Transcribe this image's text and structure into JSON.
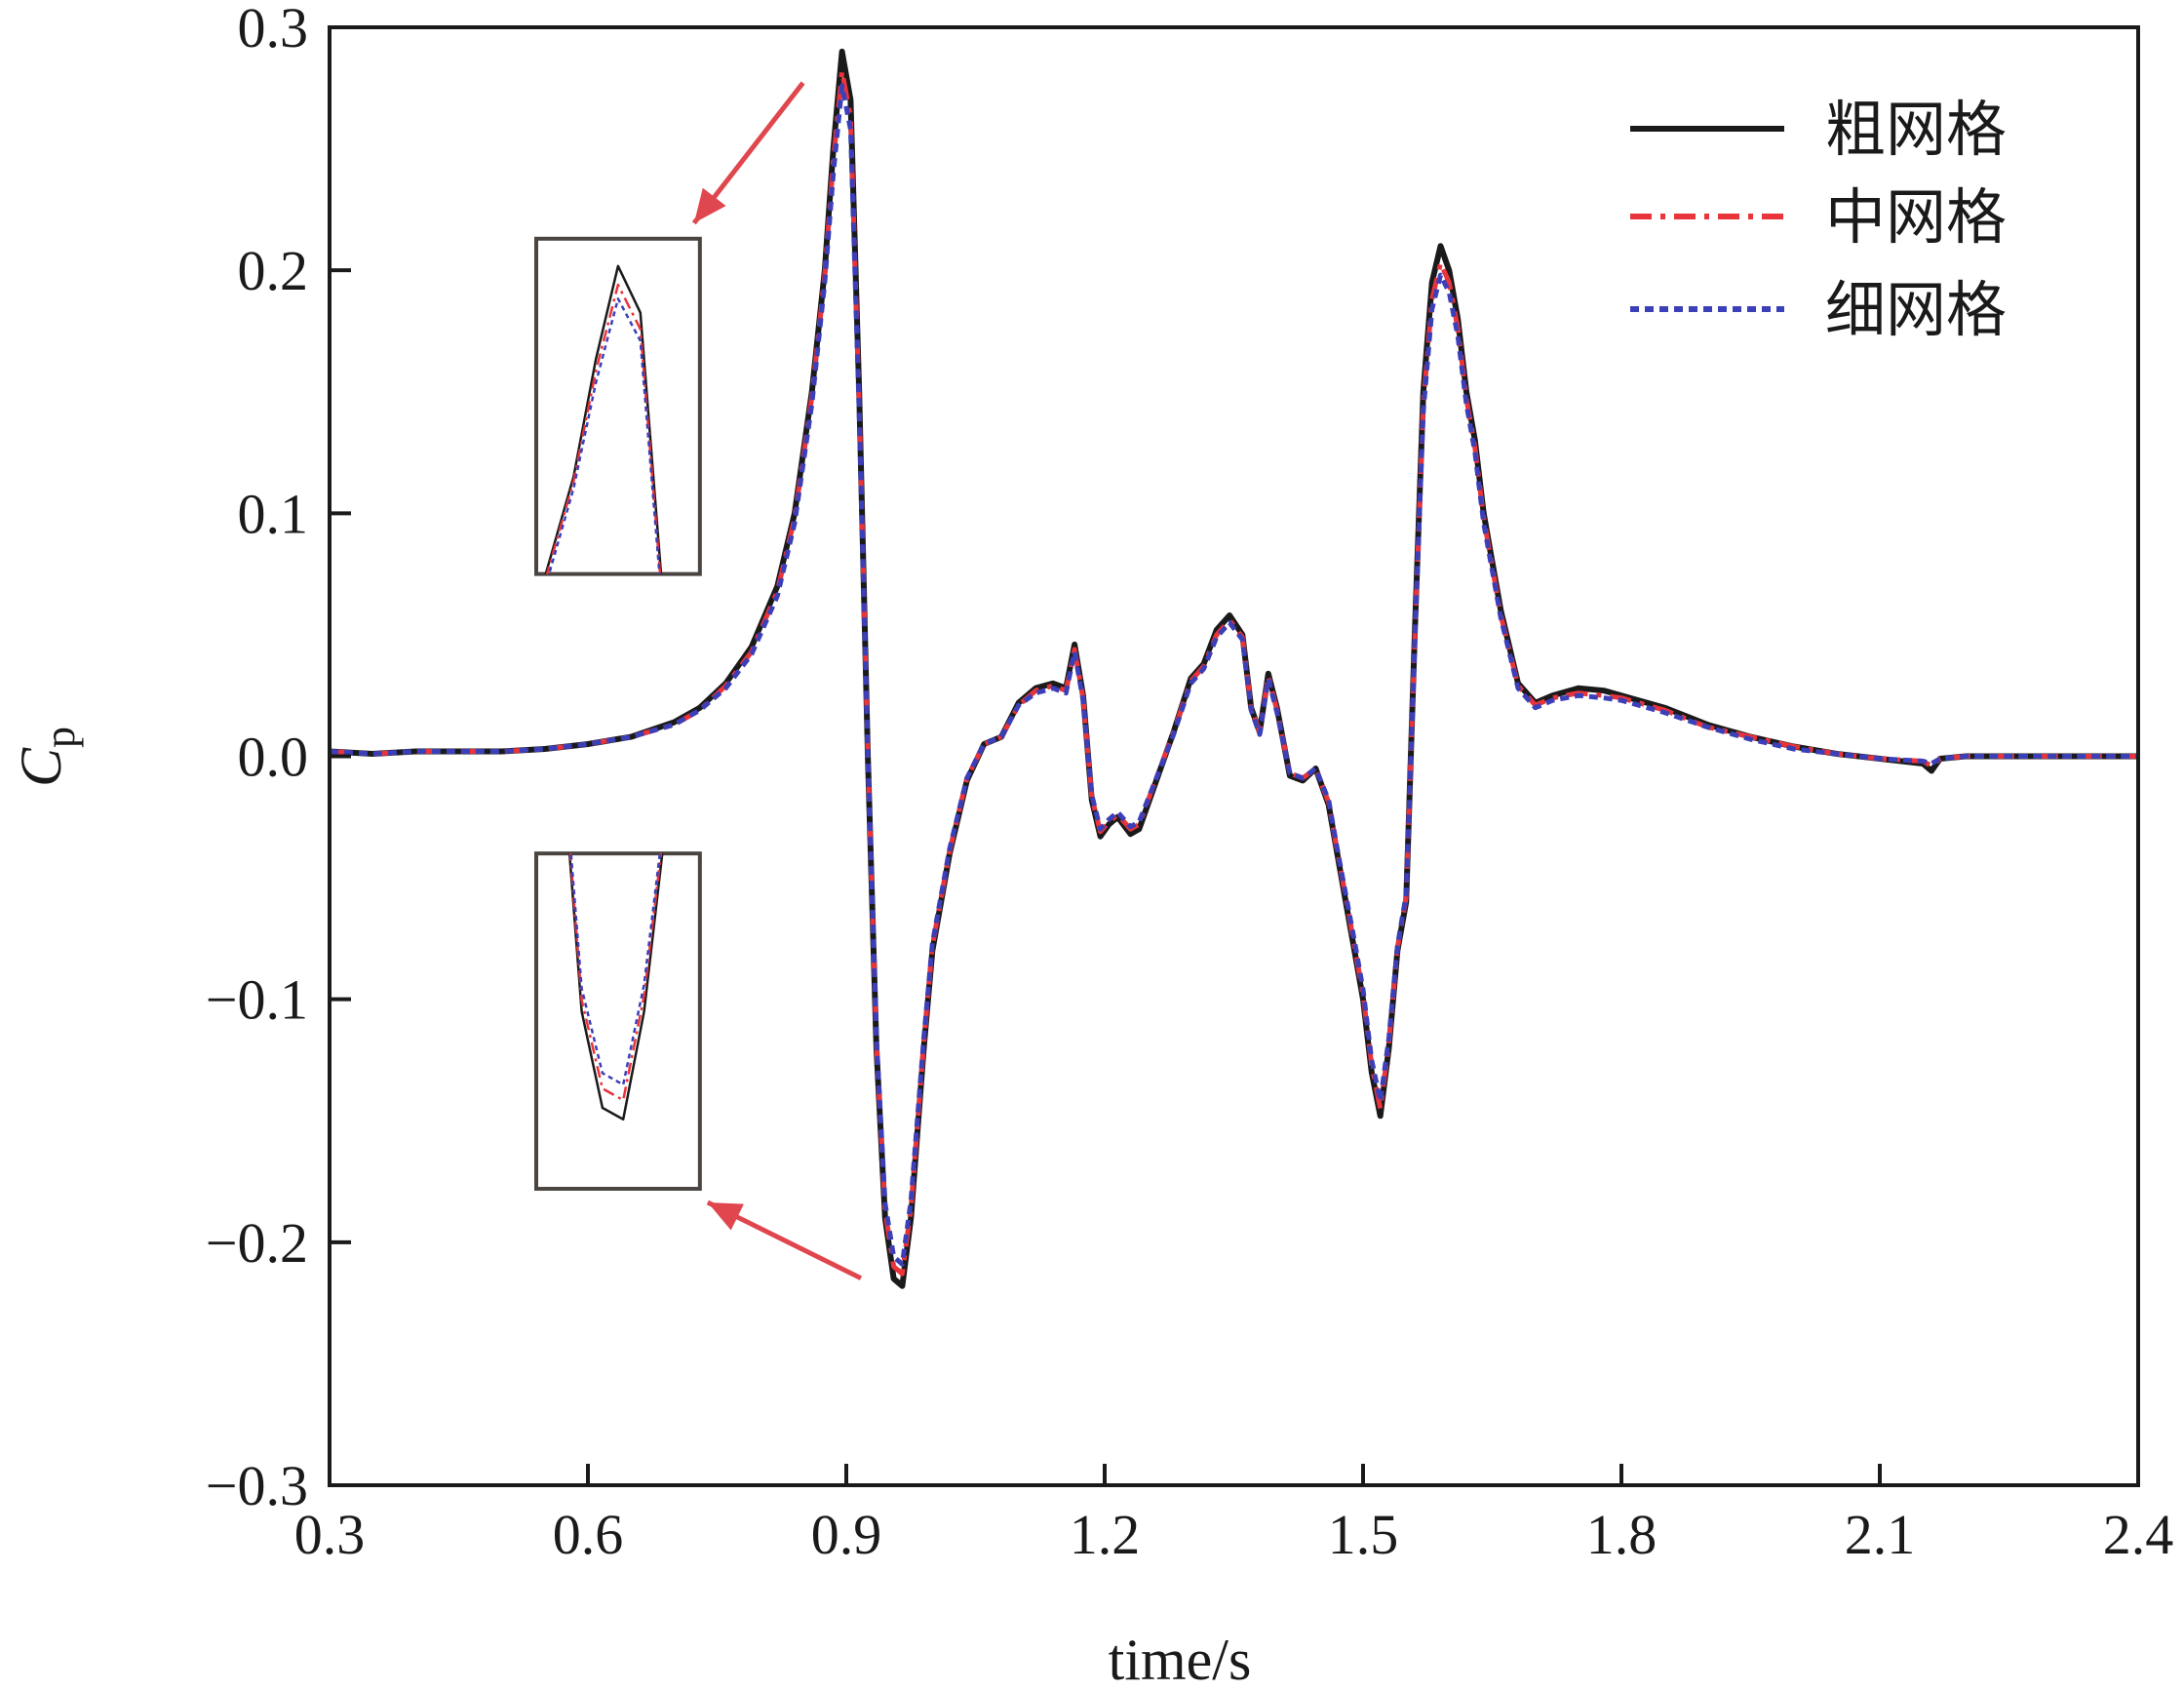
{
  "chart_data": {
    "type": "line",
    "title": "",
    "xlabel": "time/s",
    "ylabel": "C",
    "ylabel_sub": "p",
    "xlim": [
      0.3,
      2.4
    ],
    "ylim": [
      -0.3,
      0.3
    ],
    "xticks": [
      0.3,
      0.6,
      0.9,
      1.2,
      1.5,
      1.8,
      2.1,
      2.4
    ],
    "yticks": [
      -0.3,
      -0.2,
      -0.1,
      0.0,
      0.1,
      0.2,
      0.3
    ],
    "xtick_labels": [
      "0.3",
      "0.6",
      "0.9",
      "1.2",
      "1.5",
      "1.8",
      "2.1",
      "2.4"
    ],
    "ytick_labels": [
      "−0.3",
      "−0.2",
      "−0.1",
      "0.0",
      "0.1",
      "0.2",
      "0.3"
    ],
    "grid": false,
    "legend_position": "top-right",
    "x": [
      0.3,
      0.35,
      0.4,
      0.45,
      0.5,
      0.55,
      0.6,
      0.65,
      0.7,
      0.73,
      0.76,
      0.79,
      0.82,
      0.84,
      0.86,
      0.875,
      0.885,
      0.895,
      0.905,
      0.915,
      0.925,
      0.935,
      0.945,
      0.955,
      0.965,
      0.975,
      0.99,
      1.0,
      1.02,
      1.04,
      1.06,
      1.08,
      1.1,
      1.12,
      1.14,
      1.155,
      1.165,
      1.175,
      1.185,
      1.195,
      1.205,
      1.215,
      1.23,
      1.24,
      1.26,
      1.28,
      1.3,
      1.315,
      1.33,
      1.345,
      1.36,
      1.37,
      1.38,
      1.39,
      1.4,
      1.415,
      1.43,
      1.445,
      1.46,
      1.47,
      1.48,
      1.49,
      1.5,
      1.51,
      1.52,
      1.53,
      1.54,
      1.55,
      1.56,
      1.57,
      1.58,
      1.59,
      1.6,
      1.61,
      1.62,
      1.63,
      1.64,
      1.66,
      1.68,
      1.7,
      1.72,
      1.75,
      1.78,
      1.8,
      1.85,
      1.9,
      1.95,
      2.0,
      2.05,
      2.1,
      2.15,
      2.16,
      2.17,
      2.2,
      2.3,
      2.4
    ],
    "series": [
      {
        "name": "粗网格",
        "color": "#1a1a1a",
        "style": "solid",
        "values": [
          0.002,
          0.001,
          0.002,
          0.002,
          0.002,
          0.003,
          0.005,
          0.008,
          0.014,
          0.02,
          0.03,
          0.045,
          0.07,
          0.1,
          0.15,
          0.2,
          0.25,
          0.29,
          0.27,
          0.15,
          0.0,
          -0.12,
          -0.19,
          -0.215,
          -0.218,
          -0.19,
          -0.12,
          -0.08,
          -0.04,
          -0.01,
          0.005,
          0.008,
          0.022,
          0.028,
          0.03,
          0.028,
          0.046,
          0.025,
          -0.018,
          -0.033,
          -0.028,
          -0.025,
          -0.032,
          -0.03,
          -0.01,
          0.01,
          0.032,
          0.038,
          0.052,
          0.058,
          0.05,
          0.02,
          0.01,
          0.034,
          0.02,
          -0.008,
          -0.01,
          -0.005,
          -0.02,
          -0.04,
          -0.06,
          -0.08,
          -0.1,
          -0.13,
          -0.148,
          -0.12,
          -0.08,
          -0.06,
          0.05,
          0.15,
          0.195,
          0.21,
          0.2,
          0.18,
          0.15,
          0.13,
          0.1,
          0.06,
          0.03,
          0.022,
          0.025,
          0.028,
          0.027,
          0.025,
          0.02,
          0.013,
          0.008,
          0.004,
          0.001,
          -0.001,
          -0.003,
          -0.006,
          -0.001,
          0.0,
          0.0,
          0.0
        ]
      },
      {
        "name": "中网格",
        "color": "#e8343a",
        "style": "dashdot",
        "values": [
          0.002,
          0.001,
          0.002,
          0.002,
          0.002,
          0.003,
          0.005,
          0.008,
          0.013,
          0.019,
          0.029,
          0.043,
          0.068,
          0.098,
          0.148,
          0.198,
          0.245,
          0.282,
          0.263,
          0.145,
          0.0,
          -0.118,
          -0.187,
          -0.21,
          -0.213,
          -0.186,
          -0.118,
          -0.078,
          -0.039,
          -0.009,
          0.005,
          0.008,
          0.021,
          0.027,
          0.029,
          0.027,
          0.044,
          0.024,
          -0.017,
          -0.031,
          -0.027,
          -0.024,
          -0.03,
          -0.028,
          -0.009,
          0.01,
          0.031,
          0.037,
          0.05,
          0.056,
          0.049,
          0.02,
          0.01,
          0.033,
          0.019,
          -0.007,
          -0.009,
          -0.005,
          -0.019,
          -0.039,
          -0.058,
          -0.078,
          -0.098,
          -0.127,
          -0.145,
          -0.118,
          -0.079,
          -0.058,
          0.048,
          0.145,
          0.188,
          0.203,
          0.195,
          0.176,
          0.147,
          0.127,
          0.098,
          0.058,
          0.029,
          0.021,
          0.024,
          0.026,
          0.025,
          0.024,
          0.019,
          0.012,
          0.008,
          0.004,
          0.001,
          -0.001,
          -0.002,
          -0.004,
          -0.001,
          0.0,
          0.0,
          0.0
        ]
      },
      {
        "name": "细网格",
        "color": "#3b3fb8",
        "style": "dotted",
        "values": [
          0.002,
          0.001,
          0.002,
          0.002,
          0.002,
          0.003,
          0.005,
          0.008,
          0.013,
          0.019,
          0.028,
          0.042,
          0.066,
          0.096,
          0.145,
          0.195,
          0.24,
          0.276,
          0.258,
          0.142,
          0.0,
          -0.116,
          -0.184,
          -0.206,
          -0.209,
          -0.183,
          -0.116,
          -0.077,
          -0.038,
          -0.009,
          0.005,
          0.008,
          0.021,
          0.026,
          0.028,
          0.026,
          0.043,
          0.023,
          -0.016,
          -0.03,
          -0.026,
          -0.023,
          -0.029,
          -0.027,
          -0.009,
          0.009,
          0.03,
          0.036,
          0.049,
          0.055,
          0.048,
          0.019,
          0.009,
          0.032,
          0.018,
          -0.007,
          -0.009,
          -0.005,
          -0.018,
          -0.038,
          -0.057,
          -0.076,
          -0.096,
          -0.125,
          -0.142,
          -0.116,
          -0.078,
          -0.057,
          0.047,
          0.142,
          0.184,
          0.198,
          0.191,
          0.173,
          0.145,
          0.125,
          0.096,
          0.057,
          0.028,
          0.02,
          0.023,
          0.025,
          0.024,
          0.023,
          0.018,
          0.012,
          0.007,
          0.003,
          0.001,
          -0.001,
          -0.002,
          -0.003,
          -0.001,
          0.0,
          0.0,
          0.0
        ]
      }
    ],
    "inset_peak": {
      "x": [
        0.86,
        0.93
      ],
      "y": [
        0.16,
        0.3
      ],
      "x_frame": [
        0.54,
        0.73
      ],
      "y_frame": [
        0.075,
        0.213
      ]
    },
    "inset_trough": {
      "x": [
        0.925,
        1.0
      ],
      "y": [
        -0.235,
        -0.15
      ],
      "x_frame": [
        0.54,
        0.73
      ],
      "y_frame": [
        -0.178,
        -0.04
      ]
    },
    "arrow_color": "#e0464e"
  }
}
